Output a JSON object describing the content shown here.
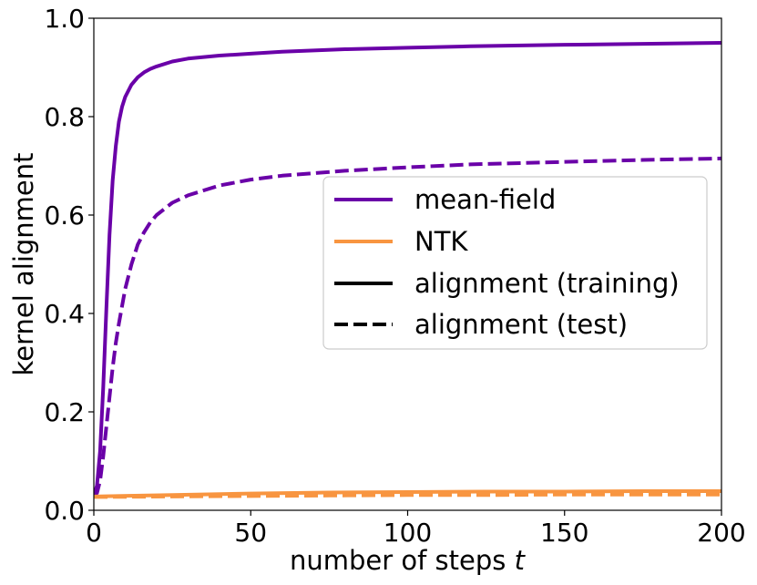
{
  "chart_data": {
    "type": "line",
    "title": "",
    "xlabel": "number of steps ",
    "xlabel_var": "t",
    "ylabel": "kernel alignment",
    "xlim": [
      0,
      200
    ],
    "ylim": [
      0.0,
      1.0
    ],
    "xticks": [
      0,
      50,
      100,
      150,
      200
    ],
    "xtick_labels": [
      "0",
      "50",
      "100",
      "150",
      "200"
    ],
    "yticks": [
      0.0,
      0.2,
      0.4,
      0.6,
      0.8,
      1.0
    ],
    "ytick_labels": [
      "0.0",
      "0.2",
      "0.4",
      "0.6",
      "0.8",
      "1.0"
    ],
    "grid": false,
    "legend_position": "center-right",
    "legend": [
      {
        "label": "mean-field",
        "color": "#6a00a8",
        "style": "solid"
      },
      {
        "label": "NTK",
        "color": "#f89540",
        "style": "solid"
      },
      {
        "label": "alignment (training)",
        "color": "#000000",
        "style": "solid"
      },
      {
        "label": "alignment (test)",
        "color": "#000000",
        "style": "dashed"
      }
    ],
    "series": [
      {
        "model": "mean-field",
        "set": "training",
        "color": "#6a00a8",
        "style": "solid",
        "x": [
          0,
          1,
          2,
          3,
          4,
          5,
          6,
          7,
          8,
          9,
          10,
          12,
          14,
          16,
          18,
          20,
          25,
          30,
          40,
          50,
          60,
          80,
          100,
          120,
          150,
          175,
          200
        ],
        "y": [
          0.03,
          0.05,
          0.12,
          0.25,
          0.41,
          0.56,
          0.67,
          0.74,
          0.79,
          0.82,
          0.84,
          0.865,
          0.88,
          0.89,
          0.897,
          0.902,
          0.912,
          0.918,
          0.924,
          0.928,
          0.932,
          0.937,
          0.94,
          0.943,
          0.946,
          0.948,
          0.95
        ]
      },
      {
        "model": "mean-field",
        "set": "test",
        "color": "#6a00a8",
        "style": "dashed",
        "x": [
          0,
          1,
          2,
          3,
          4,
          5,
          6,
          7,
          8,
          10,
          12,
          14,
          16,
          18,
          20,
          25,
          30,
          40,
          50,
          60,
          80,
          100,
          120,
          150,
          175,
          200
        ],
        "y": [
          0.03,
          0.035,
          0.06,
          0.11,
          0.17,
          0.23,
          0.29,
          0.34,
          0.38,
          0.45,
          0.5,
          0.54,
          0.565,
          0.585,
          0.6,
          0.625,
          0.64,
          0.66,
          0.672,
          0.68,
          0.69,
          0.697,
          0.703,
          0.708,
          0.712,
          0.715
        ]
      },
      {
        "model": "NTK",
        "set": "training",
        "color": "#f89540",
        "style": "solid",
        "x": [
          0,
          25,
          50,
          75,
          100,
          125,
          150,
          175,
          200
        ],
        "y": [
          0.028,
          0.031,
          0.034,
          0.036,
          0.037,
          0.038,
          0.038,
          0.039,
          0.039
        ]
      },
      {
        "model": "NTK",
        "set": "test",
        "color": "#f89540",
        "style": "dashed",
        "x": [
          0,
          25,
          50,
          75,
          100,
          125,
          150,
          175,
          200
        ],
        "y": [
          0.027,
          0.028,
          0.029,
          0.03,
          0.031,
          0.031,
          0.032,
          0.032,
          0.032
        ]
      }
    ]
  }
}
